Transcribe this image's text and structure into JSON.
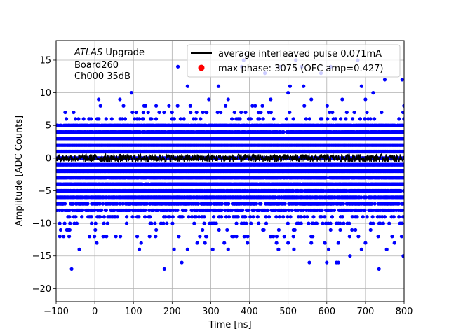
{
  "chart_data": {
    "type": "scatter",
    "xlabel": "Time [ns]",
    "ylabel": "Amplitude [ADC Counts]",
    "xlim": [
      -100,
      800
    ],
    "ylim": [
      -22,
      18
    ],
    "x_ticks": [
      -100,
      0,
      100,
      200,
      300,
      400,
      500,
      600,
      700,
      800
    ],
    "y_ticks": [
      -20,
      -15,
      -10,
      -5,
      0,
      5,
      10,
      15
    ],
    "grid": true,
    "legend_placement": "upper-right",
    "annotation": {
      "italic": "ATLAS",
      "rest": "Upgrade",
      "line2": "Board260",
      "line3": "Ch000 35dB"
    },
    "series": [
      {
        "name": "average interleaved pulse 0.071mA",
        "type": "line",
        "color": "#000000",
        "description_level": 0,
        "x_range": [
          -100,
          800
        ],
        "noise_amplitude": 0.6
      },
      {
        "name": "max phase: 3075 (OFC amp=0.427)",
        "type": "scatter",
        "color": "#ff0000"
      },
      {
        "type": "scatter",
        "color": "#0000ff",
        "dense_levels": [
          -8,
          -7,
          -6,
          -5,
          -4,
          -3,
          -2,
          -1,
          0,
          1,
          2,
          3,
          4,
          5
        ],
        "sparse_points": [
          {
            "x": -60,
            "y": -17
          },
          {
            "x": -40,
            "y": -14
          },
          {
            "x": 5,
            "y": -13
          },
          {
            "x": 180,
            "y": -17
          },
          {
            "x": 225,
            "y": -16
          },
          {
            "x": 555,
            "y": -16
          },
          {
            "x": 600,
            "y": -16
          },
          {
            "x": 625,
            "y": -16
          },
          {
            "x": 630,
            "y": -16
          },
          {
            "x": 735,
            "y": -17
          },
          {
            "x": 798,
            "y": -15
          },
          {
            "x": 115,
            "y": -14
          },
          {
            "x": 120,
            "y": -13
          },
          {
            "x": 205,
            "y": -14
          },
          {
            "x": 240,
            "y": -14
          },
          {
            "x": 265,
            "y": -13
          },
          {
            "x": 285,
            "y": -13
          },
          {
            "x": 305,
            "y": -14
          },
          {
            "x": 335,
            "y": -13
          },
          {
            "x": 345,
            "y": -14
          },
          {
            "x": 395,
            "y": -13
          },
          {
            "x": 470,
            "y": -13
          },
          {
            "x": 475,
            "y": -14
          },
          {
            "x": 500,
            "y": -13
          },
          {
            "x": 515,
            "y": -14
          },
          {
            "x": 560,
            "y": -13
          },
          {
            "x": 595,
            "y": -13
          },
          {
            "x": 605,
            "y": -14
          },
          {
            "x": 630,
            "y": -13
          },
          {
            "x": 660,
            "y": -15
          },
          {
            "x": 690,
            "y": -14
          },
          {
            "x": 700,
            "y": -13
          },
          {
            "x": 755,
            "y": -14
          },
          {
            "x": 775,
            "y": -13
          },
          {
            "x": 215,
            "y": 14
          },
          {
            "x": 240,
            "y": 11
          },
          {
            "x": 320,
            "y": 11
          },
          {
            "x": 380,
            "y": 14
          },
          {
            "x": 385,
            "y": 15
          },
          {
            "x": 440,
            "y": 13
          },
          {
            "x": 480,
            "y": 14
          },
          {
            "x": 500,
            "y": 10
          },
          {
            "x": 505,
            "y": 11
          },
          {
            "x": 520,
            "y": 15
          },
          {
            "x": 535,
            "y": 14
          },
          {
            "x": 540,
            "y": 11
          },
          {
            "x": 585,
            "y": 13
          },
          {
            "x": 610,
            "y": 14
          },
          {
            "x": 680,
            "y": 15
          },
          {
            "x": 690,
            "y": 11
          },
          {
            "x": 720,
            "y": 10
          },
          {
            "x": 750,
            "y": 12
          },
          {
            "x": 795,
            "y": 12
          },
          {
            "x": 295,
            "y": 9
          },
          {
            "x": 345,
            "y": 9
          },
          {
            "x": 455,
            "y": 9
          },
          {
            "x": 560,
            "y": 9
          },
          {
            "x": 640,
            "y": 9
          },
          {
            "x": 700,
            "y": 9
          },
          {
            "x": 65,
            "y": 9
          },
          {
            "x": 10,
            "y": 9
          },
          {
            "x": 95,
            "y": 10
          }
        ]
      }
    ]
  }
}
